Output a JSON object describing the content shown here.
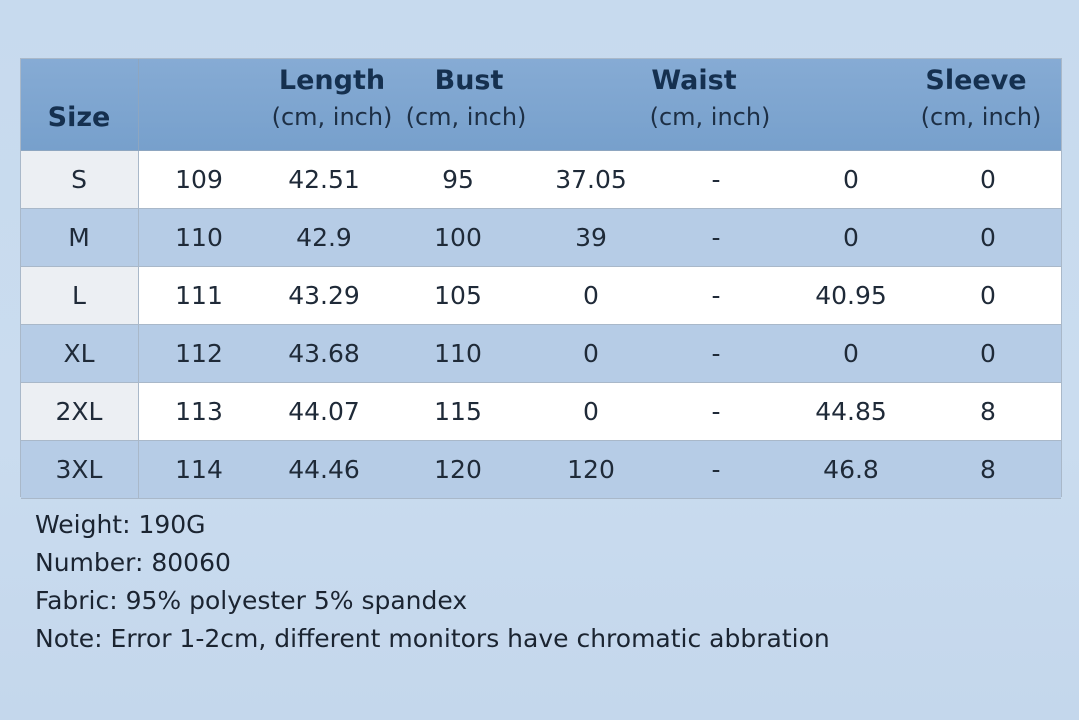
{
  "table": {
    "header": {
      "size": "Size",
      "columns": [
        {
          "label": "Length",
          "unit": "(cm, inch)"
        },
        {
          "label": "Bust",
          "unit": "(cm, inch)"
        },
        {
          "label": "Waist",
          "unit": "(cm, inch)"
        },
        {
          "label": "Sleeve",
          "unit": "(cm, inch)"
        }
      ]
    },
    "rows": [
      [
        "S",
        "109",
        "42.51",
        "95",
        "37.05",
        "-",
        "0",
        "0"
      ],
      [
        "M",
        "110",
        "42.9",
        "100",
        "39",
        "-",
        "0",
        "0"
      ],
      [
        "L",
        "111",
        "43.29",
        "105",
        "0",
        "-",
        "40.95",
        "0"
      ],
      [
        "XL",
        "112",
        "43.68",
        "110",
        "0",
        "-",
        "0",
        "0"
      ],
      [
        "2XL",
        "113",
        "44.07",
        "115",
        "0",
        "-",
        "44.85",
        "8"
      ],
      [
        "3XL",
        "114",
        "44.46",
        "120",
        "120",
        "-",
        "46.8",
        "8"
      ]
    ]
  },
  "notes": [
    "Weight: 190G",
    "Number: 80060",
    "Fabric: 95% polyester 5% spandex",
    "Note: Error 1-2cm, different monitors have chromatic abbration"
  ]
}
